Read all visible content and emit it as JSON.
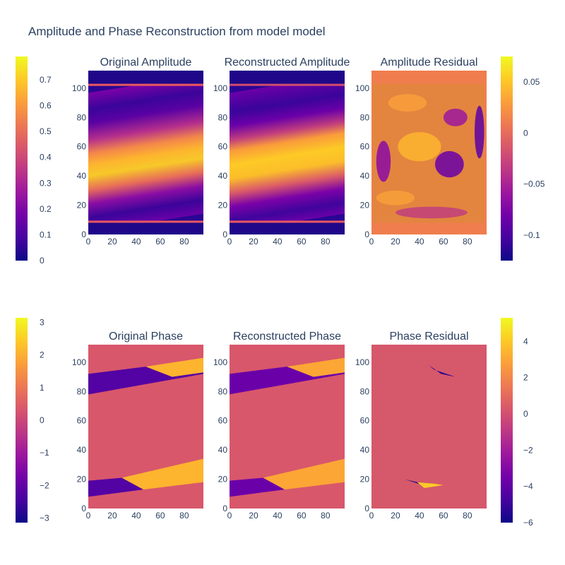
{
  "title": "Amplitude and Phase Reconstruction from model model",
  "colorscale": [
    "#0d0887",
    "#46039f",
    "#7201a8",
    "#9c179e",
    "#bd3786",
    "#d8576b",
    "#ed7953",
    "#fb9f3a",
    "#fdca26",
    "#f0f921"
  ],
  "chart_data": [
    {
      "type": "heatmap",
      "title": "Original Amplitude",
      "x_ticks": [
        "0",
        "20",
        "40",
        "60",
        "80"
      ],
      "y_ticks": [
        "0",
        "20",
        "40",
        "60",
        "80",
        "100"
      ],
      "xlim": [
        0,
        96
      ],
      "ylim": [
        0,
        112
      ]
    },
    {
      "type": "heatmap",
      "title": "Reconstructed Amplitude",
      "x_ticks": [
        "0",
        "20",
        "40",
        "60",
        "80"
      ],
      "y_ticks": [
        "0",
        "20",
        "40",
        "60",
        "80",
        "100"
      ],
      "xlim": [
        0,
        96
      ],
      "ylim": [
        0,
        112
      ]
    },
    {
      "type": "heatmap",
      "title": "Amplitude Residual",
      "x_ticks": [
        "0",
        "20",
        "40",
        "60",
        "80"
      ],
      "y_ticks": [
        "0",
        "20",
        "40",
        "60",
        "80",
        "100"
      ],
      "xlim": [
        0,
        96
      ],
      "ylim": [
        0,
        112
      ]
    },
    {
      "type": "heatmap",
      "title": "Original Phase",
      "x_ticks": [
        "0",
        "20",
        "40",
        "60",
        "80"
      ],
      "y_ticks": [
        "0",
        "20",
        "40",
        "60",
        "80",
        "100"
      ],
      "xlim": [
        0,
        96
      ],
      "ylim": [
        0,
        112
      ]
    },
    {
      "type": "heatmap",
      "title": "Reconstructed Phase",
      "x_ticks": [
        "0",
        "20",
        "40",
        "60",
        "80"
      ],
      "y_ticks": [
        "0",
        "20",
        "40",
        "60",
        "80",
        "100"
      ],
      "xlim": [
        0,
        96
      ],
      "ylim": [
        0,
        112
      ]
    },
    {
      "type": "heatmap",
      "title": "Phase Residual",
      "x_ticks": [
        "0",
        "20",
        "40",
        "60",
        "80"
      ],
      "y_ticks": [
        "0",
        "20",
        "40",
        "60",
        "80",
        "100"
      ],
      "xlim": [
        0,
        96
      ],
      "ylim": [
        0,
        112
      ]
    }
  ],
  "colorbars": [
    {
      "name": "amplitude",
      "range": [
        0,
        0.79
      ],
      "ticks": [
        "0",
        "0.1",
        "0.2",
        "0.3",
        "0.4",
        "0.5",
        "0.6",
        "0.7"
      ]
    },
    {
      "name": "amplitude-residual",
      "range": [
        -0.125,
        0.075
      ],
      "ticks": [
        "0.05",
        "0",
        "−0.05",
        "−0.1"
      ]
    },
    {
      "name": "phase",
      "range": [
        -3.14,
        3.14
      ],
      "ticks": [
        "3",
        "2",
        "1",
        "0",
        "−1",
        "−2",
        "−3"
      ]
    },
    {
      "name": "phase-residual",
      "range": [
        -6,
        5.3
      ],
      "ticks": [
        "4",
        "2",
        "0",
        "−2",
        "−4",
        "−6"
      ]
    }
  ]
}
